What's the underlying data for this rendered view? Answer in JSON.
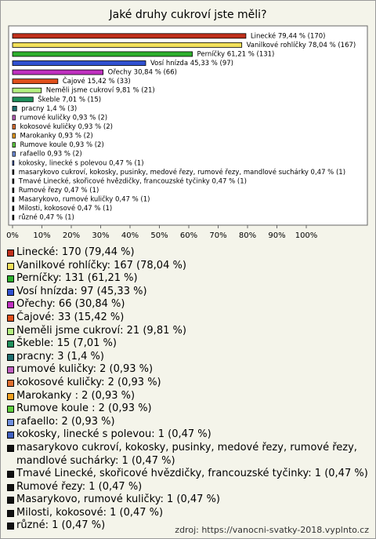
{
  "chart_data": {
    "type": "bar",
    "orientation": "horizontal",
    "title": "Jaké druhy cukroví jste měli?",
    "categories": [
      "Linecké",
      "Vanilkové rohlíčky",
      "Perníčky",
      "Vosí hnízda",
      "Ořechy",
      "Čajové",
      "Neměli jsme cukroví",
      "Škeble",
      "pracny",
      "rumové kuličky",
      "kokosové kuličky",
      "Marokanky",
      "Rumove koule",
      "rafaello",
      "kokosky, linecké s polevou",
      "masarykovo cukroví, kokosky, pusinky, medové řezy, rumové řezy, mandlové suchárky",
      "Tmavé Linecké, skořicové hvězdičky, francouzské tyčinky",
      "Rumové řezy",
      "Masarykovo, rumové kuličky",
      "Milosti, kokosové",
      "různé"
    ],
    "values": [
      79.44,
      78.04,
      61.21,
      45.33,
      30.84,
      15.42,
      9.81,
      7.01,
      1.4,
      0.93,
      0.93,
      0.93,
      0.93,
      0.93,
      0.47,
      0.47,
      0.47,
      0.47,
      0.47,
      0.47,
      0.47
    ],
    "value_labels": [
      "Linecké 79,44 % (170)",
      "Vanilkové rohlíčky 78,04 % (167)",
      "Perníčky 61,21 % (131)",
      "Vosí hnízda 45,33 % (97)",
      "Ořechy 30,84 % (66)",
      "Čajové 15,42 % (33)",
      "Neměli jsme cukroví 9,81 % (21)",
      "Škeble 7,01 % (15)",
      "pracny 1,4 % (3)",
      "rumové kuličky 0,93 % (2)",
      "kokosové kuličky 0,93 % (2)",
      "Marokanky  0,93 % (2)",
      "Rumove koule  0,93 % (2)",
      "rafaello 0,93 % (2)",
      "kokosky, linecké s polevou 0,47 % (1)",
      "masarykovo cukroví, kokosky, pusinky, medové řezy, rumové řezy, mandlové suchárky 0,47 % (1)",
      "Tmavé Linecké, skořicové hvězdičky, francouzské tyčinky 0,47 % (1)",
      "Rumové řezy 0,47 % (1)",
      "Masarykovo, rumové kuličky 0,47 % (1)",
      "Milosti, kokosové 0,47 % (1)",
      "různé 0,47 % (1)"
    ],
    "legend_labels": [
      "Linecké: 170 (79,44 %)",
      "Vanilkové rohlíčky: 167 (78,04 %)",
      "Perníčky: 131 (61,21 %)",
      "Vosí hnízda: 97 (45,33 %)",
      "Ořechy: 66 (30,84 %)",
      "Čajové: 33 (15,42 %)",
      "Neměli jsme cukroví: 21 (9,81 %)",
      "Škeble: 15 (7,01 %)",
      "pracny: 3 (1,4 %)",
      "rumové kuličky: 2 (0,93 %)",
      "kokosové kuličky: 2 (0,93 %)",
      "Marokanky : 2 (0,93 %)",
      "Rumove koule : 2 (0,93 %)",
      "rafaello: 2 (0,93 %)",
      "kokosky, linecké s polevou: 1 (0,47 %)",
      "masarykovo cukroví, kokosky, pusinky, medové řezy, rumové řezy, mandlové suchárky: 1 (0,47 %)",
      "Tmavé Linecké, skořicové hvězdičky, francouzské tyčinky: 1 (0,47 %)",
      "Rumové řezy: 1 (0,47 %)",
      "Masarykovo, rumové kuličky: 1 (0,47 %)",
      "Milosti, kokosové: 1 (0,47 %)",
      "různé: 1 (0,47 %)"
    ],
    "colors": [
      "#c0301c",
      "#f2e05a",
      "#2eb02e",
      "#3050d0",
      "#c030c0",
      "#e0501c",
      "#b4f080",
      "#20905c",
      "#207070",
      "#c060c0",
      "#e07030",
      "#f0a020",
      "#60d040",
      "#7090e0",
      "#4060c0",
      "#111111",
      "#111111",
      "#111111",
      "#111111",
      "#111111",
      "#111111"
    ],
    "xlim": [
      0,
      120
    ],
    "xticks": [
      {
        "value": 0,
        "label": "0%"
      },
      {
        "value": 10,
        "label": "10%"
      },
      {
        "value": 20,
        "label": "20%"
      },
      {
        "value": 30,
        "label": "30%"
      },
      {
        "value": 40,
        "label": "40%"
      },
      {
        "value": 50,
        "label": "50%"
      },
      {
        "value": 60,
        "label": "60%"
      },
      {
        "value": 70,
        "label": "70%"
      },
      {
        "value": 80,
        "label": "80%"
      },
      {
        "value": 90,
        "label": "90%"
      },
      {
        "value": 100,
        "label": "100%"
      }
    ],
    "source": "zdroj: https://vanocni-svatky-2018.vyplnto.cz"
  }
}
